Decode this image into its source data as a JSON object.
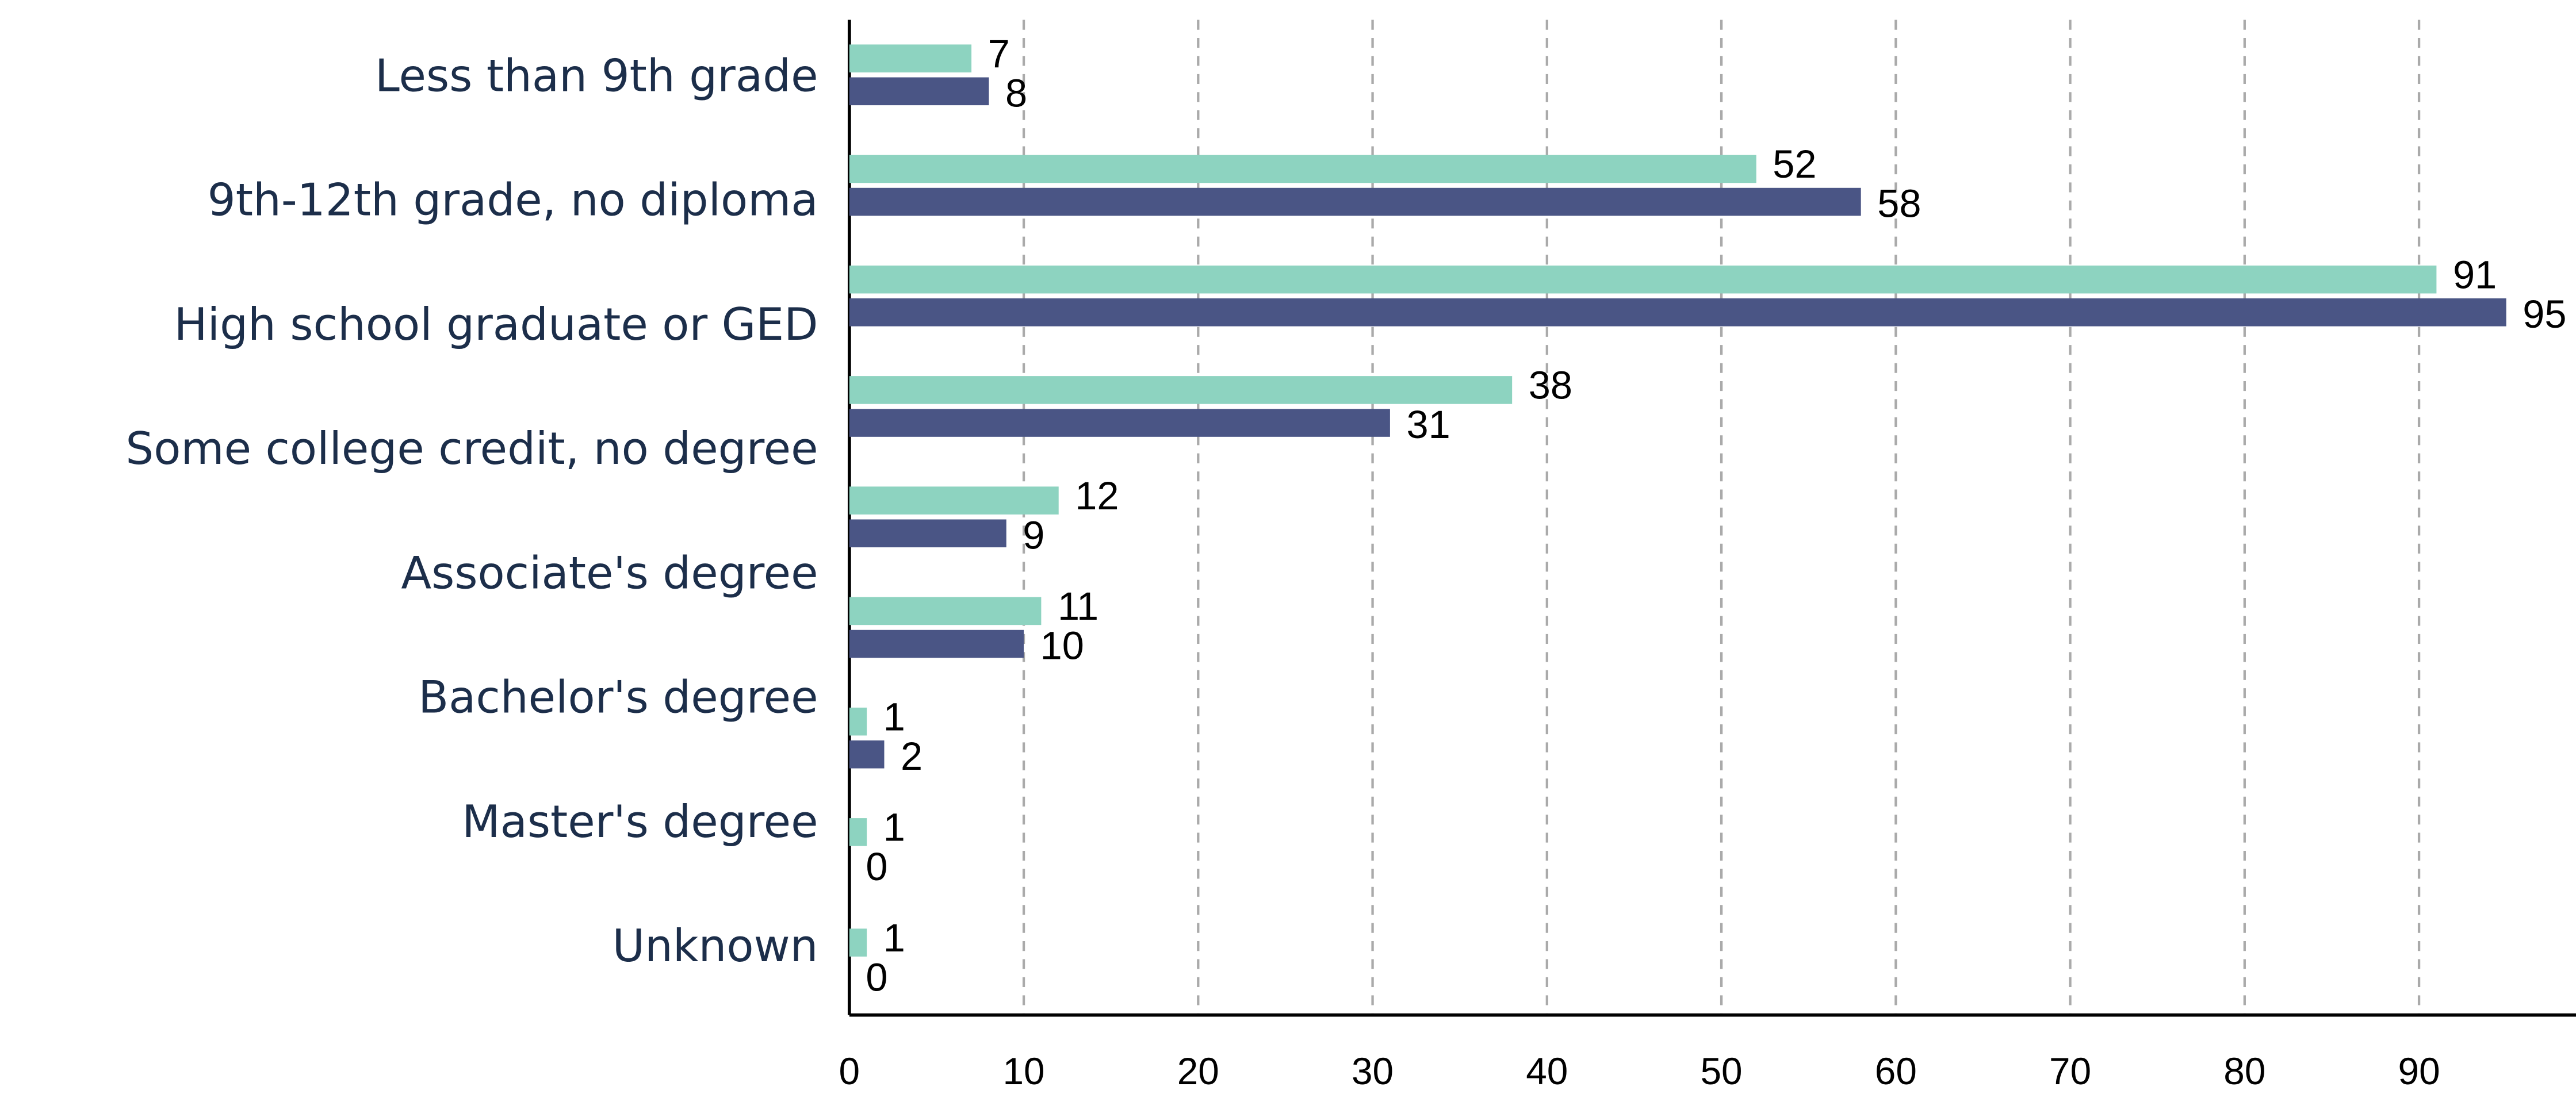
{
  "chart_data": {
    "type": "bar",
    "orientation": "horizontal",
    "categories": [
      "Less than 9th grade",
      "9th-12th grade, no diploma",
      "High school graduate or GED",
      "Some college credit, no degree",
      "Associate's degree",
      "Bachelor's degree",
      "Master's degree",
      "Unknown",
      null
    ],
    "series": [
      {
        "color": "#8dd3c0",
        "values": [
          7,
          52,
          91,
          38,
          12,
          11,
          1,
          1,
          1
        ]
      },
      {
        "color": "#4a5585",
        "values": [
          8,
          58,
          95,
          31,
          9,
          10,
          2,
          0,
          0
        ]
      }
    ],
    "xlim": [
      0,
      99
    ],
    "xticks": [
      0,
      10,
      20,
      30,
      40,
      50,
      60,
      70,
      80,
      90
    ],
    "grid": true
  }
}
